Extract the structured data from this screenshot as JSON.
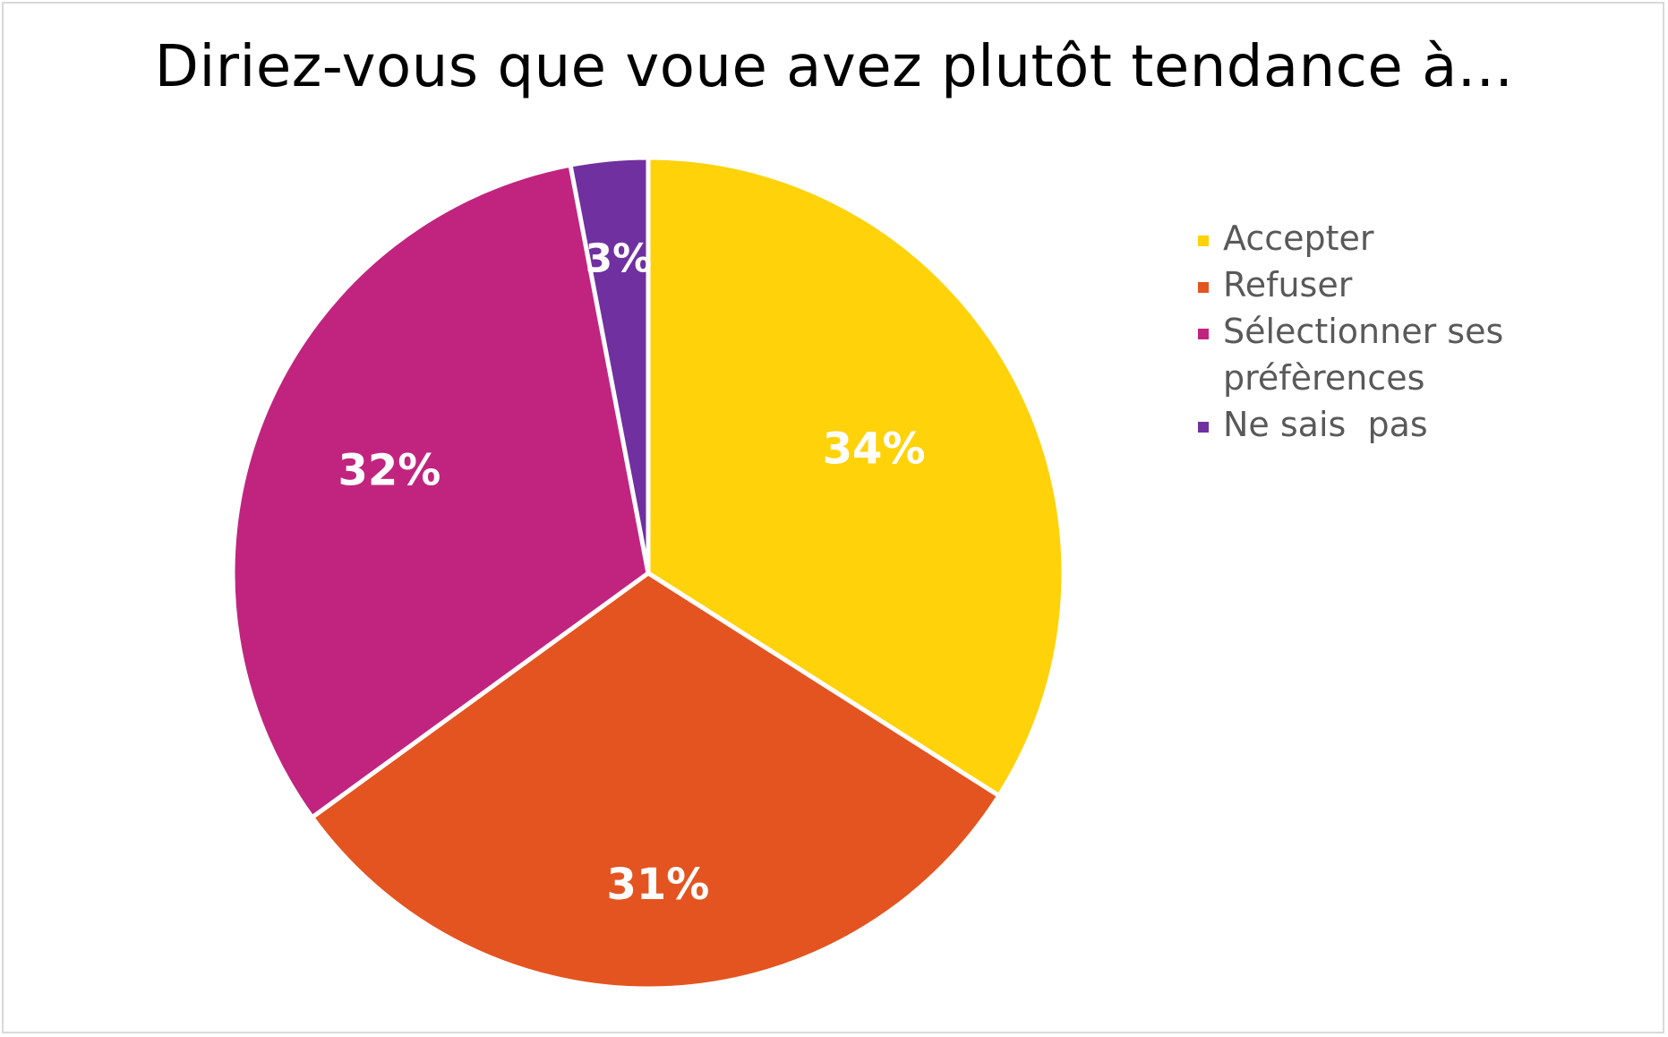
{
  "chart_data": {
    "type": "pie",
    "title": "Diriez-vous que voue avez plutôt tendance à...",
    "categories": [
      "Accepter",
      "Refuser",
      "Sélectionner ses préfèrences",
      "Ne sais  pas"
    ],
    "values": [
      34,
      31,
      32,
      3
    ],
    "data_labels": [
      "34%",
      "31%",
      "32%",
      "3%"
    ],
    "colors": [
      "#FFD20A",
      "#E45420",
      "#C1247F",
      "#7030A0"
    ],
    "legend_position": "right",
    "start_angle": "12 o'clock, clockwise"
  }
}
